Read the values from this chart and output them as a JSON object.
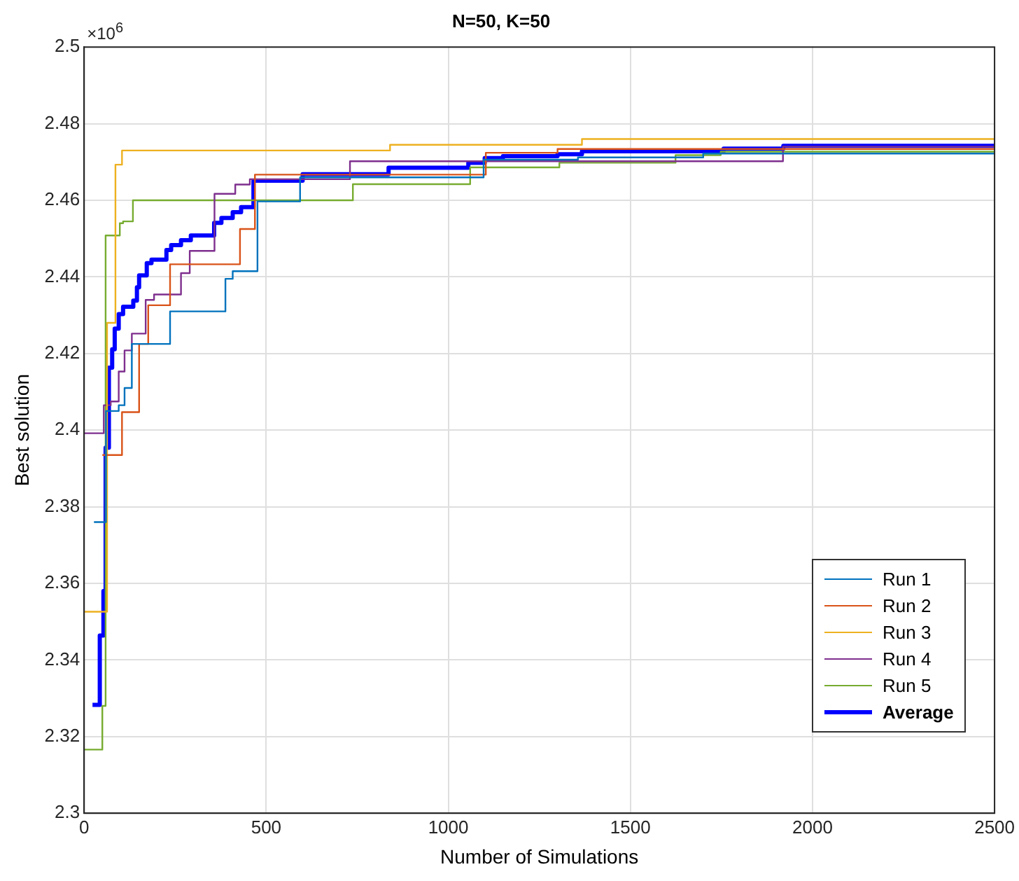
{
  "chart_data": {
    "type": "step",
    "title": "N=50, K=50",
    "xlabel": "Number of Simulations",
    "ylabel": "Best solution",
    "annotations": [
      "×10$^{6}$"
    ],
    "xlim": [
      0,
      2500
    ],
    "xticks": [
      0,
      500,
      1000,
      1500,
      2000,
      2500
    ],
    "ylim": [
      2.3,
      2.5
    ],
    "yticks": [
      2.3,
      2.32,
      2.34,
      2.36,
      2.38,
      2.4,
      2.42,
      2.44,
      2.46,
      2.48,
      2.5
    ],
    "grid": true,
    "legend": "bottom right",
    "marker": "none",
    "series": [
      {
        "name": "Run 1",
        "color": "#0072bd",
        "x": [
          27,
          60,
          95,
          111,
          131,
          151,
          236,
          388,
          408,
          476,
          593,
          836,
          1097,
          1356,
          1700,
          2500
        ],
        "values": [
          2.376,
          2.405,
          2.4065,
          2.411,
          2.4225,
          2.4225,
          2.431,
          2.4395,
          2.4415,
          2.4597,
          2.466,
          2.466,
          2.4706,
          2.4712,
          2.4722,
          2.4722
        ]
      },
      {
        "name": "Run 2",
        "color": "#d95319",
        "x": [
          50,
          104,
          151,
          176,
          236,
          428,
          469,
          1103,
          1300,
          2500
        ],
        "values": [
          2.3935,
          2.4047,
          2.4225,
          2.4326,
          2.4433,
          2.4525,
          2.4667,
          2.4724,
          2.4734,
          2.4734
        ]
      },
      {
        "name": "Run 3",
        "color": "#edb120",
        "x": [
          0,
          63,
          86,
          104,
          840,
          1367,
          2500
        ],
        "values": [
          2.3526,
          2.428,
          2.4693,
          2.473,
          2.4745,
          2.476,
          2.476
        ]
      },
      {
        "name": "Run 4",
        "color": "#7e2f8e",
        "x": [
          0,
          54,
          73,
          95,
          111,
          131,
          169,
          192,
          266,
          290,
          358,
          415,
          455,
          730,
          1919,
          2500
        ],
        "values": [
          2.3992,
          2.4065,
          2.4075,
          2.4153,
          2.4208,
          2.4252,
          2.434,
          2.4354,
          2.441,
          2.4468,
          2.4617,
          2.4641,
          2.4655,
          2.4702,
          2.474,
          2.474
        ]
      },
      {
        "name": "Run 5",
        "color": "#77ac30",
        "x": [
          0,
          50,
          59,
          98,
          107,
          134,
          738,
          1060,
          1305,
          1624,
          1748,
          2500
        ],
        "values": [
          2.3166,
          2.328,
          2.4508,
          2.454,
          2.4545,
          2.46,
          2.4642,
          2.4686,
          2.4698,
          2.4718,
          2.4727,
          2.4727
        ]
      },
      {
        "name": "Average",
        "color": "#0000ff",
        "x": [
          23,
          43,
          53,
          59,
          68,
          77,
          84,
          95,
          107,
          135,
          145,
          151,
          172,
          185,
          226,
          239,
          266,
          293,
          357,
          377,
          408,
          431,
          465,
          600,
          836,
          1055,
          1100,
          1150,
          1300,
          1367,
          1756,
          1920,
          2500
        ],
        "values": [
          2.3283,
          2.3464,
          2.358,
          2.3954,
          2.4163,
          2.4211,
          2.4265,
          2.4303,
          2.4322,
          2.4338,
          2.4373,
          2.4404,
          2.4436,
          2.4445,
          2.447,
          2.4483,
          2.4496,
          2.4508,
          2.4541,
          2.4554,
          2.4569,
          2.4582,
          2.4651,
          2.4668,
          2.4685,
          2.4698,
          2.471,
          2.4715,
          2.472,
          2.4728,
          2.4735,
          2.4742,
          2.4742
        ]
      }
    ]
  }
}
